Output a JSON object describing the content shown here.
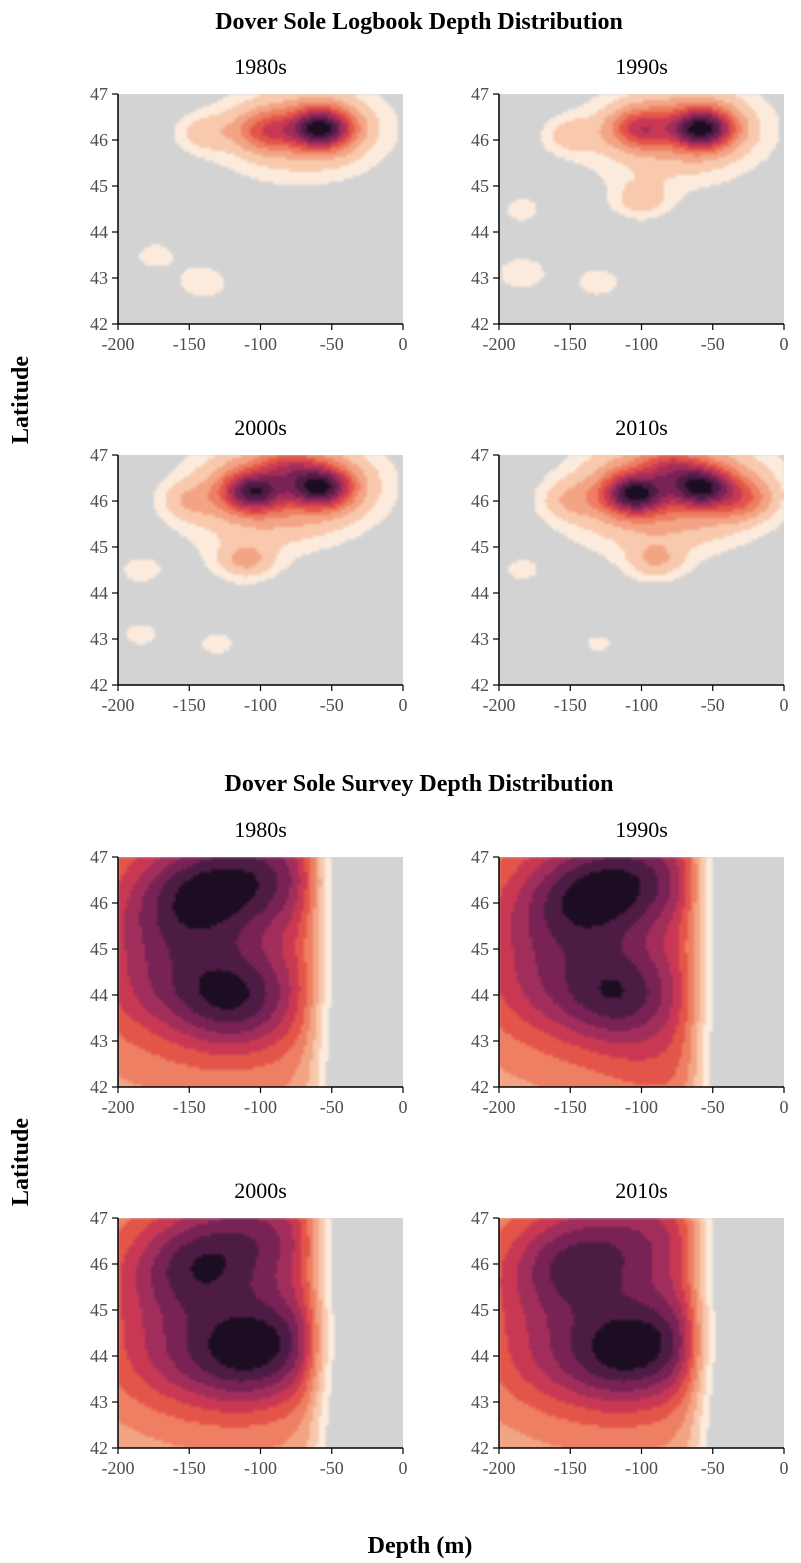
{
  "chart_data": [
    {
      "type": "heatmap",
      "title": "Dover Sole Logbook Depth Distribution",
      "xlabel": "Depth (m)",
      "ylabel": "Latitude",
      "xlim": [
        -200,
        0
      ],
      "ylim": [
        42,
        47
      ],
      "xticks": [
        -200,
        -150,
        -100,
        -50,
        0
      ],
      "yticks": [
        42,
        43,
        44,
        45,
        46,
        47
      ],
      "grid": false,
      "background_color": "#d3d3d3",
      "levels": 10,
      "panels": [
        {
          "title": "1980s",
          "peaks": [
            {
              "x": -58,
              "y": 46.25,
              "weight": 1.0
            },
            {
              "x": -95,
              "y": 46.2,
              "weight": 0.35
            },
            {
              "x": -140,
              "y": 46.15,
              "weight": 0.12
            },
            {
              "x": -175,
              "y": 43.5,
              "weight": 0.08
            },
            {
              "x": -140,
              "y": 42.9,
              "weight": 0.1
            },
            {
              "x": -120,
              "y": 44.3,
              "weight": 0.06
            }
          ]
        },
        {
          "title": "1990s",
          "peaks": [
            {
              "x": -58,
              "y": 46.25,
              "weight": 1.0
            },
            {
              "x": -100,
              "y": 46.25,
              "weight": 0.45
            },
            {
              "x": -150,
              "y": 46.1,
              "weight": 0.12
            },
            {
              "x": -100,
              "y": 44.7,
              "weight": 0.14
            },
            {
              "x": -185,
              "y": 44.5,
              "weight": 0.08
            },
            {
              "x": -185,
              "y": 43.1,
              "weight": 0.1
            },
            {
              "x": -130,
              "y": 42.9,
              "weight": 0.09
            }
          ]
        },
        {
          "title": "2000s",
          "peaks": [
            {
              "x": -58,
              "y": 46.3,
              "weight": 0.9
            },
            {
              "x": -105,
              "y": 46.2,
              "weight": 0.8
            },
            {
              "x": -80,
              "y": 46.7,
              "weight": 0.3
            },
            {
              "x": -150,
              "y": 46.0,
              "weight": 0.12
            },
            {
              "x": -110,
              "y": 44.7,
              "weight": 0.18
            },
            {
              "x": -185,
              "y": 44.5,
              "weight": 0.08
            },
            {
              "x": -185,
              "y": 43.1,
              "weight": 0.08
            },
            {
              "x": -130,
              "y": 42.9,
              "weight": 0.08
            }
          ]
        },
        {
          "title": "2010s",
          "peaks": [
            {
              "x": -58,
              "y": 46.3,
              "weight": 0.85
            },
            {
              "x": -105,
              "y": 46.15,
              "weight": 0.9
            },
            {
              "x": -80,
              "y": 46.7,
              "weight": 0.3
            },
            {
              "x": -30,
              "y": 46.05,
              "weight": 0.25
            },
            {
              "x": -150,
              "y": 46.0,
              "weight": 0.12
            },
            {
              "x": -90,
              "y": 44.7,
              "weight": 0.16
            },
            {
              "x": -185,
              "y": 44.5,
              "weight": 0.08
            },
            {
              "x": -130,
              "y": 42.9,
              "weight": 0.08
            }
          ]
        }
      ]
    },
    {
      "type": "heatmap",
      "title": "Dover Sole Survey Depth Distribution",
      "xlabel": "Depth (m)",
      "ylabel": "Latitude",
      "xlim": [
        -200,
        0
      ],
      "ylim": [
        42,
        47
      ],
      "xticks": [
        -200,
        -150,
        -100,
        -50,
        0
      ],
      "yticks": [
        42,
        43,
        44,
        45,
        46,
        47
      ],
      "grid": false,
      "background_color": "#d3d3d3",
      "levels": 10,
      "panels": [
        {
          "title": "1980s",
          "peaks": [
            {
              "x": -118,
              "y": 43.95,
              "weight": 1.0
            },
            {
              "x": -140,
              "y": 46.25,
              "weight": 0.8
            },
            {
              "x": -95,
              "y": 46.6,
              "weight": 0.65
            },
            {
              "x": -170,
              "y": 44.2,
              "weight": 0.35
            },
            {
              "x": -165,
              "y": 45.6,
              "weight": 0.35
            }
          ]
        },
        {
          "title": "1990s",
          "peaks": [
            {
              "x": -115,
              "y": 44.0,
              "weight": 1.0
            },
            {
              "x": -135,
              "y": 46.2,
              "weight": 0.9
            },
            {
              "x": -95,
              "y": 46.6,
              "weight": 0.65
            },
            {
              "x": -170,
              "y": 44.2,
              "weight": 0.35
            },
            {
              "x": -165,
              "y": 45.6,
              "weight": 0.35
            },
            {
              "x": -80,
              "y": 42.4,
              "weight": 0.2
            }
          ]
        },
        {
          "title": "2000s",
          "peaks": [
            {
              "x": -115,
              "y": 44.0,
              "weight": 1.0
            },
            {
              "x": -140,
              "y": 46.1,
              "weight": 0.85
            },
            {
              "x": -85,
              "y": 44.4,
              "weight": 0.7
            },
            {
              "x": -95,
              "y": 46.7,
              "weight": 0.65
            },
            {
              "x": -165,
              "y": 44.0,
              "weight": 0.4
            },
            {
              "x": -160,
              "y": 45.6,
              "weight": 0.4
            }
          ]
        },
        {
          "title": "2010s",
          "peaks": [
            {
              "x": -115,
              "y": 44.0,
              "weight": 0.95
            },
            {
              "x": -145,
              "y": 46.1,
              "weight": 0.75
            },
            {
              "x": -85,
              "y": 44.4,
              "weight": 0.7
            },
            {
              "x": -95,
              "y": 46.6,
              "weight": 0.55
            },
            {
              "x": -165,
              "y": 44.0,
              "weight": 0.35
            },
            {
              "x": -160,
              "y": 45.6,
              "weight": 0.35
            }
          ]
        }
      ]
    }
  ],
  "colors": {
    "background": "#d3d3d3",
    "palette": [
      "#fcebdd",
      "#f8c9ad",
      "#f3a485",
      "#ee7f62",
      "#e45549",
      "#c93952",
      "#a12d5a",
      "#782457",
      "#4d1b45",
      "#1a1020"
    ]
  }
}
